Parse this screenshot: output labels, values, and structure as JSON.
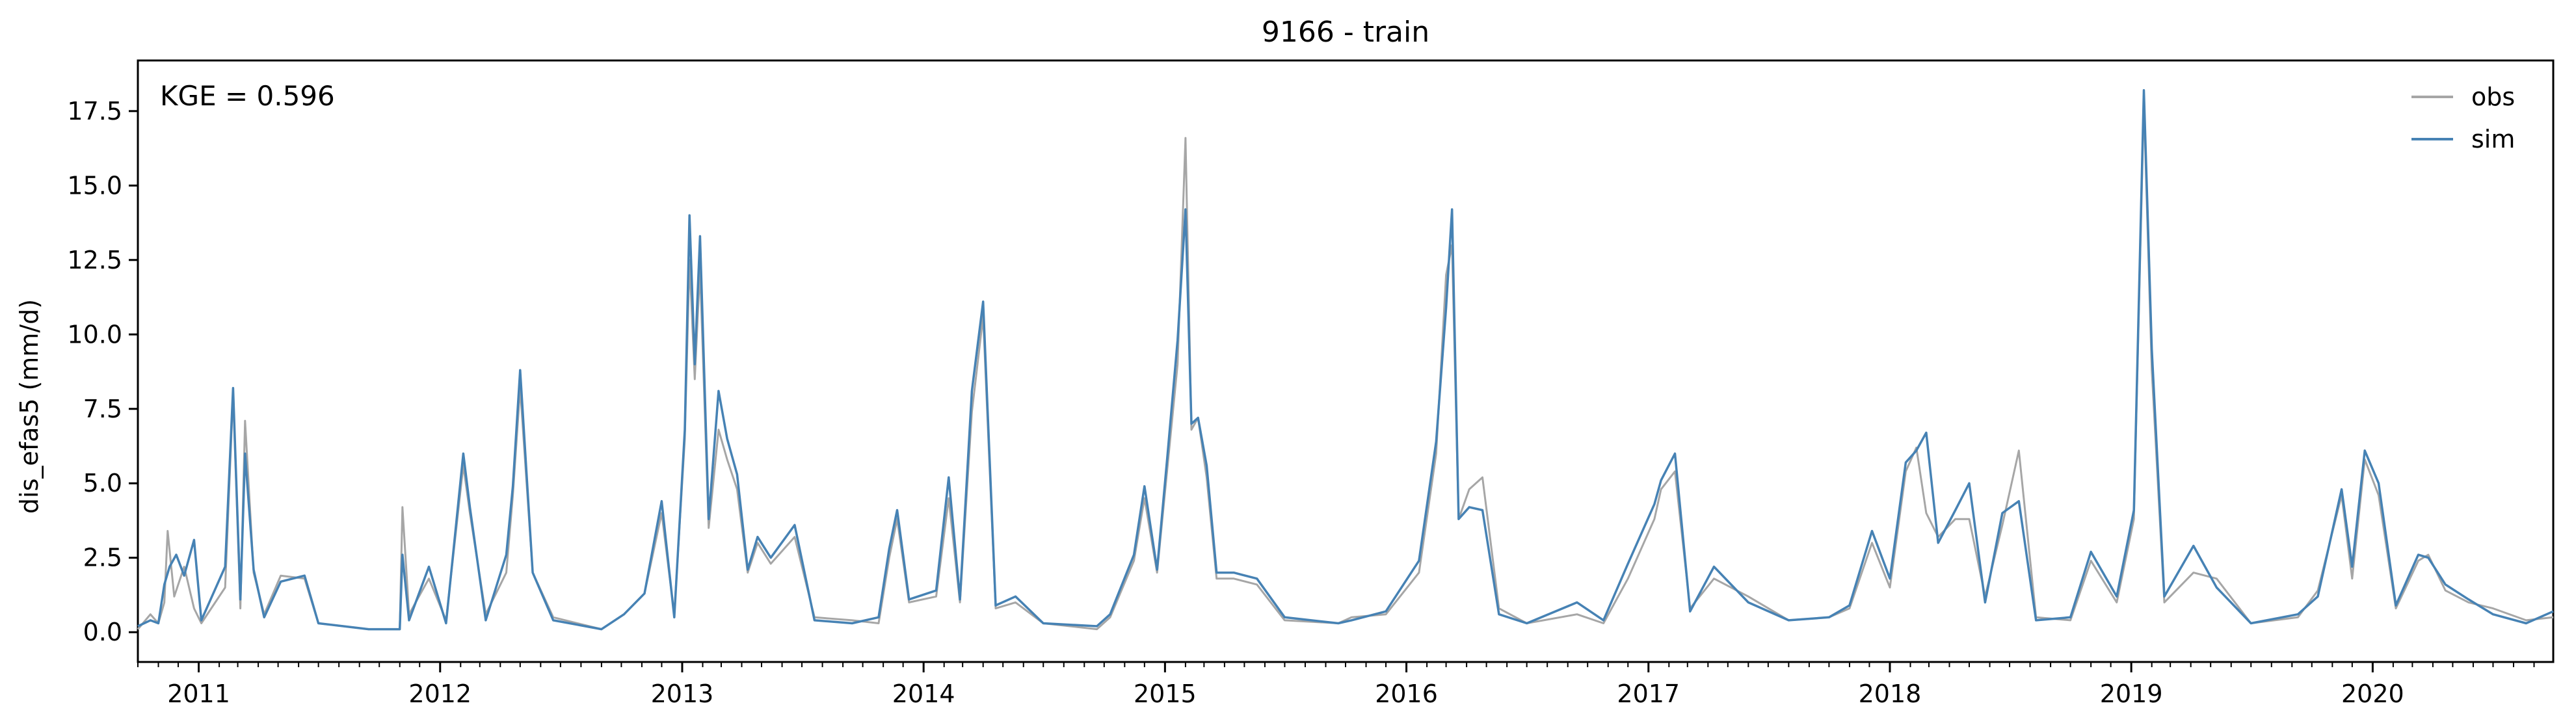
{
  "chart_data": {
    "type": "line",
    "title": "9166 - train",
    "xlabel": "",
    "ylabel": "dis_efas5 (mm/d)",
    "annotation": "KGE = 0.596",
    "x_range": [
      "2010-10-01",
      "2020-09-30"
    ],
    "ylim": [
      -1.0,
      19.2
    ],
    "y_ticks": [
      0.0,
      2.5,
      5.0,
      7.5,
      10.0,
      12.5,
      15.0,
      17.5
    ],
    "y_tick_labels": [
      "0.0",
      "2.5",
      "5.0",
      "7.5",
      "10.0",
      "12.5",
      "15.0",
      "17.5"
    ],
    "x_ticks": [
      "2011-01-01",
      "2012-01-01",
      "2013-01-01",
      "2014-01-01",
      "2015-01-01",
      "2016-01-01",
      "2017-01-01",
      "2018-01-01",
      "2019-01-01",
      "2020-01-01"
    ],
    "x_tick_labels": [
      "2011",
      "2012",
      "2013",
      "2014",
      "2015",
      "2016",
      "2017",
      "2018",
      "2019",
      "2020"
    ],
    "grid": false,
    "legend": "top-right",
    "series": [
      {
        "name": "obs",
        "color": "#a6a6a6",
        "points": [
          [
            "2010-10-01",
            0.1
          ],
          [
            "2010-10-20",
            0.6
          ],
          [
            "2010-11-01",
            0.3
          ],
          [
            "2010-11-10",
            1.0
          ],
          [
            "2010-11-15",
            3.4
          ],
          [
            "2010-11-25",
            1.2
          ],
          [
            "2010-12-10",
            2.2
          ],
          [
            "2010-12-25",
            0.8
          ],
          [
            "2011-01-05",
            0.3
          ],
          [
            "2011-02-10",
            1.5
          ],
          [
            "2011-02-22",
            8.0
          ],
          [
            "2011-03-05",
            0.8
          ],
          [
            "2011-03-12",
            7.1
          ],
          [
            "2011-03-25",
            2.0
          ],
          [
            "2011-04-10",
            0.6
          ],
          [
            "2011-05-05",
            1.9
          ],
          [
            "2011-06-10",
            1.8
          ],
          [
            "2011-07-01",
            0.3
          ],
          [
            "2011-09-15",
            0.1
          ],
          [
            "2011-11-01",
            0.1
          ],
          [
            "2011-11-05",
            4.2
          ],
          [
            "2011-11-15",
            0.6
          ],
          [
            "2011-12-15",
            1.8
          ],
          [
            "2012-01-10",
            0.4
          ],
          [
            "2012-02-05",
            5.6
          ],
          [
            "2012-02-15",
            4.0
          ],
          [
            "2012-03-10",
            0.6
          ],
          [
            "2012-04-10",
            2.0
          ],
          [
            "2012-04-20",
            4.6
          ],
          [
            "2012-05-01",
            8.2
          ],
          [
            "2012-05-20",
            2.0
          ],
          [
            "2012-06-20",
            0.5
          ],
          [
            "2012-09-01",
            0.1
          ],
          [
            "2012-10-05",
            0.6
          ],
          [
            "2012-11-05",
            1.3
          ],
          [
            "2012-12-01",
            4.0
          ],
          [
            "2012-12-20",
            0.6
          ],
          [
            "2013-01-05",
            6.5
          ],
          [
            "2013-01-12",
            12.5
          ],
          [
            "2013-01-20",
            8.5
          ],
          [
            "2013-01-28",
            12.2
          ],
          [
            "2013-02-10",
            3.5
          ],
          [
            "2013-02-25",
            6.8
          ],
          [
            "2013-03-10",
            5.8
          ],
          [
            "2013-03-25",
            4.8
          ],
          [
            "2013-04-10",
            2.0
          ],
          [
            "2013-04-25",
            3.0
          ],
          [
            "2013-05-15",
            2.3
          ],
          [
            "2013-06-20",
            3.2
          ],
          [
            "2013-07-20",
            0.5
          ],
          [
            "2013-09-15",
            0.4
          ],
          [
            "2013-10-25",
            0.3
          ],
          [
            "2013-11-10",
            2.5
          ],
          [
            "2013-11-22",
            3.8
          ],
          [
            "2013-12-10",
            1.0
          ],
          [
            "2014-01-20",
            1.2
          ],
          [
            "2014-02-08",
            4.5
          ],
          [
            "2014-02-25",
            1.0
          ],
          [
            "2014-03-15",
            7.4
          ],
          [
            "2014-04-01",
            10.6
          ],
          [
            "2014-04-20",
            0.8
          ],
          [
            "2014-05-20",
            1.0
          ],
          [
            "2014-07-01",
            0.3
          ],
          [
            "2014-09-20",
            0.1
          ],
          [
            "2014-10-10",
            0.5
          ],
          [
            "2014-11-15",
            2.4
          ],
          [
            "2014-12-01",
            4.5
          ],
          [
            "2014-12-20",
            2.0
          ],
          [
            "2015-01-05",
            5.6
          ],
          [
            "2015-01-20",
            9.0
          ],
          [
            "2015-02-01",
            16.6
          ],
          [
            "2015-02-10",
            6.8
          ],
          [
            "2015-02-20",
            7.2
          ],
          [
            "2015-03-05",
            5.2
          ],
          [
            "2015-03-20",
            1.8
          ],
          [
            "2015-04-15",
            1.8
          ],
          [
            "2015-05-20",
            1.6
          ],
          [
            "2015-07-01",
            0.4
          ],
          [
            "2015-09-20",
            0.3
          ],
          [
            "2015-10-10",
            0.5
          ],
          [
            "2015-12-01",
            0.6
          ],
          [
            "2016-01-20",
            2.0
          ],
          [
            "2016-02-15",
            6.0
          ],
          [
            "2016-03-01",
            12.0
          ],
          [
            "2016-03-10",
            13.0
          ],
          [
            "2016-03-20",
            3.8
          ],
          [
            "2016-04-05",
            4.8
          ],
          [
            "2016-04-25",
            5.2
          ],
          [
            "2016-05-20",
            0.8
          ],
          [
            "2016-07-01",
            0.3
          ],
          [
            "2016-09-15",
            0.6
          ],
          [
            "2016-10-25",
            0.3
          ],
          [
            "2016-12-01",
            1.8
          ],
          [
            "2017-01-10",
            3.8
          ],
          [
            "2017-01-20",
            4.8
          ],
          [
            "2017-02-10",
            5.4
          ],
          [
            "2017-03-05",
            0.8
          ],
          [
            "2017-04-10",
            1.8
          ],
          [
            "2017-06-01",
            1.2
          ],
          [
            "2017-08-01",
            0.4
          ],
          [
            "2017-10-01",
            0.5
          ],
          [
            "2017-11-01",
            0.8
          ],
          [
            "2017-12-05",
            3.0
          ],
          [
            "2018-01-01",
            1.5
          ],
          [
            "2018-01-25",
            5.4
          ],
          [
            "2018-02-10",
            6.2
          ],
          [
            "2018-02-25",
            4.0
          ],
          [
            "2018-03-15",
            3.2
          ],
          [
            "2018-04-10",
            3.8
          ],
          [
            "2018-05-01",
            3.8
          ],
          [
            "2018-05-25",
            1.2
          ],
          [
            "2018-06-20",
            3.6
          ],
          [
            "2018-07-15",
            6.1
          ],
          [
            "2018-08-10",
            0.5
          ],
          [
            "2018-10-01",
            0.4
          ],
          [
            "2018-11-01",
            2.4
          ],
          [
            "2018-12-10",
            1.0
          ],
          [
            "2019-01-05",
            3.8
          ],
          [
            "2019-01-20",
            17.8
          ],
          [
            "2019-02-01",
            8.8
          ],
          [
            "2019-02-20",
            1.0
          ],
          [
            "2019-04-05",
            2.0
          ],
          [
            "2019-05-10",
            1.8
          ],
          [
            "2019-07-01",
            0.3
          ],
          [
            "2019-09-10",
            0.5
          ],
          [
            "2019-10-10",
            1.4
          ],
          [
            "2019-11-15",
            4.6
          ],
          [
            "2019-12-01",
            1.8
          ],
          [
            "2019-12-20",
            5.8
          ],
          [
            "2020-01-10",
            4.6
          ],
          [
            "2020-02-05",
            0.8
          ],
          [
            "2020-03-10",
            2.4
          ],
          [
            "2020-03-25",
            2.6
          ],
          [
            "2020-04-20",
            1.4
          ],
          [
            "2020-05-25",
            1.0
          ],
          [
            "2020-07-01",
            0.8
          ],
          [
            "2020-08-20",
            0.4
          ],
          [
            "2020-09-30",
            0.5
          ]
        ]
      },
      {
        "name": "sim",
        "color": "#4682b4",
        "points": [
          [
            "2010-10-01",
            0.2
          ],
          [
            "2010-10-20",
            0.4
          ],
          [
            "2010-11-01",
            0.3
          ],
          [
            "2010-11-10",
            1.6
          ],
          [
            "2010-11-18",
            2.2
          ],
          [
            "2010-11-28",
            2.6
          ],
          [
            "2010-12-10",
            1.9
          ],
          [
            "2010-12-25",
            3.1
          ],
          [
            "2011-01-05",
            0.4
          ],
          [
            "2011-02-10",
            2.2
          ],
          [
            "2011-02-22",
            8.2
          ],
          [
            "2011-03-05",
            1.1
          ],
          [
            "2011-03-12",
            6.0
          ],
          [
            "2011-03-25",
            2.1
          ],
          [
            "2011-04-10",
            0.5
          ],
          [
            "2011-05-05",
            1.7
          ],
          [
            "2011-06-10",
            1.9
          ],
          [
            "2011-07-01",
            0.3
          ],
          [
            "2011-09-15",
            0.1
          ],
          [
            "2011-11-01",
            0.1
          ],
          [
            "2011-11-05",
            2.6
          ],
          [
            "2011-11-15",
            0.4
          ],
          [
            "2011-12-15",
            2.2
          ],
          [
            "2012-01-10",
            0.3
          ],
          [
            "2012-02-05",
            6.0
          ],
          [
            "2012-02-15",
            4.2
          ],
          [
            "2012-03-10",
            0.4
          ],
          [
            "2012-04-10",
            2.6
          ],
          [
            "2012-04-20",
            4.9
          ],
          [
            "2012-05-01",
            8.8
          ],
          [
            "2012-05-20",
            2.0
          ],
          [
            "2012-06-20",
            0.4
          ],
          [
            "2012-09-01",
            0.1
          ],
          [
            "2012-10-05",
            0.6
          ],
          [
            "2012-11-05",
            1.3
          ],
          [
            "2012-12-01",
            4.4
          ],
          [
            "2012-12-20",
            0.5
          ],
          [
            "2013-01-05",
            6.8
          ],
          [
            "2013-01-12",
            14.0
          ],
          [
            "2013-01-20",
            9.0
          ],
          [
            "2013-01-28",
            13.3
          ],
          [
            "2013-02-10",
            3.8
          ],
          [
            "2013-02-25",
            8.1
          ],
          [
            "2013-03-10",
            6.5
          ],
          [
            "2013-03-25",
            5.3
          ],
          [
            "2013-04-10",
            2.1
          ],
          [
            "2013-04-25",
            3.2
          ],
          [
            "2013-05-15",
            2.5
          ],
          [
            "2013-06-20",
            3.6
          ],
          [
            "2013-07-20",
            0.4
          ],
          [
            "2013-09-15",
            0.3
          ],
          [
            "2013-10-25",
            0.5
          ],
          [
            "2013-11-10",
            2.8
          ],
          [
            "2013-11-22",
            4.1
          ],
          [
            "2013-12-10",
            1.1
          ],
          [
            "2014-01-20",
            1.4
          ],
          [
            "2014-02-08",
            5.2
          ],
          [
            "2014-02-25",
            1.1
          ],
          [
            "2014-03-15",
            8.1
          ],
          [
            "2014-04-01",
            11.1
          ],
          [
            "2014-04-20",
            0.9
          ],
          [
            "2014-05-20",
            1.2
          ],
          [
            "2014-07-01",
            0.3
          ],
          [
            "2014-09-20",
            0.2
          ],
          [
            "2014-10-10",
            0.6
          ],
          [
            "2014-11-15",
            2.6
          ],
          [
            "2014-12-01",
            4.9
          ],
          [
            "2014-12-20",
            2.1
          ],
          [
            "2015-01-05",
            6.0
          ],
          [
            "2015-01-20",
            9.8
          ],
          [
            "2015-02-01",
            14.2
          ],
          [
            "2015-02-10",
            7.0
          ],
          [
            "2015-02-20",
            7.2
          ],
          [
            "2015-03-05",
            5.6
          ],
          [
            "2015-03-20",
            2.0
          ],
          [
            "2015-04-15",
            2.0
          ],
          [
            "2015-05-20",
            1.8
          ],
          [
            "2015-07-01",
            0.5
          ],
          [
            "2015-09-20",
            0.3
          ],
          [
            "2015-10-10",
            0.4
          ],
          [
            "2015-12-01",
            0.7
          ],
          [
            "2016-01-20",
            2.4
          ],
          [
            "2016-02-15",
            6.4
          ],
          [
            "2016-03-01",
            10.9
          ],
          [
            "2016-03-10",
            14.2
          ],
          [
            "2016-03-20",
            3.8
          ],
          [
            "2016-04-05",
            4.2
          ],
          [
            "2016-04-25",
            4.1
          ],
          [
            "2016-05-20",
            0.6
          ],
          [
            "2016-07-01",
            0.3
          ],
          [
            "2016-09-15",
            1.0
          ],
          [
            "2016-10-25",
            0.4
          ],
          [
            "2016-12-01",
            2.3
          ],
          [
            "2017-01-10",
            4.3
          ],
          [
            "2017-01-20",
            5.1
          ],
          [
            "2017-02-10",
            6.0
          ],
          [
            "2017-03-05",
            0.7
          ],
          [
            "2017-04-10",
            2.2
          ],
          [
            "2017-06-01",
            1.0
          ],
          [
            "2017-08-01",
            0.4
          ],
          [
            "2017-10-01",
            0.5
          ],
          [
            "2017-11-01",
            0.9
          ],
          [
            "2017-12-05",
            3.4
          ],
          [
            "2018-01-01",
            1.8
          ],
          [
            "2018-01-25",
            5.7
          ],
          [
            "2018-02-10",
            6.1
          ],
          [
            "2018-02-25",
            6.7
          ],
          [
            "2018-03-15",
            3.0
          ],
          [
            "2018-04-10",
            4.1
          ],
          [
            "2018-05-01",
            5.0
          ],
          [
            "2018-05-25",
            1.0
          ],
          [
            "2018-06-20",
            4.0
          ],
          [
            "2018-07-15",
            4.4
          ],
          [
            "2018-08-10",
            0.4
          ],
          [
            "2018-10-01",
            0.5
          ],
          [
            "2018-11-01",
            2.7
          ],
          [
            "2018-12-10",
            1.2
          ],
          [
            "2019-01-05",
            4.1
          ],
          [
            "2019-01-20",
            18.2
          ],
          [
            "2019-02-01",
            9.5
          ],
          [
            "2019-02-20",
            1.2
          ],
          [
            "2019-04-05",
            2.9
          ],
          [
            "2019-05-10",
            1.5
          ],
          [
            "2019-07-01",
            0.3
          ],
          [
            "2019-09-10",
            0.6
          ],
          [
            "2019-10-10",
            1.2
          ],
          [
            "2019-11-15",
            4.8
          ],
          [
            "2019-12-01",
            2.2
          ],
          [
            "2019-12-20",
            6.1
          ],
          [
            "2020-01-10",
            5.0
          ],
          [
            "2020-02-05",
            0.9
          ],
          [
            "2020-03-10",
            2.6
          ],
          [
            "2020-03-25",
            2.5
          ],
          [
            "2020-04-20",
            1.6
          ],
          [
            "2020-05-25",
            1.1
          ],
          [
            "2020-07-01",
            0.6
          ],
          [
            "2020-08-20",
            0.3
          ],
          [
            "2020-09-30",
            0.7
          ]
        ]
      }
    ]
  }
}
